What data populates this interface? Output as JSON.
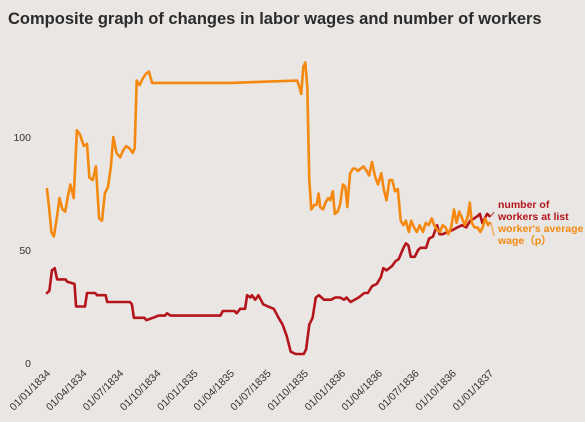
{
  "chart_data": {
    "type": "line",
    "title": "Composite graph of changes in labor wages and number of workers",
    "xlabel": "",
    "ylabel": "",
    "x_range": [
      "1834-01-01",
      "1837-01-01"
    ],
    "ylim": [
      0,
      135
    ],
    "y_ticks": [
      0,
      50,
      100
    ],
    "x_ticks": [
      {
        "date": "1834-01-01",
        "label": "01/01/1834"
      },
      {
        "date": "1834-04-01",
        "label": "01/04/1834"
      },
      {
        "date": "1834-07-01",
        "label": "01/07/1834"
      },
      {
        "date": "1834-10-01",
        "label": "01/10/1834"
      },
      {
        "date": "1835-01-01",
        "label": "01/01/1835"
      },
      {
        "date": "1835-04-01",
        "label": "01/04/1835"
      },
      {
        "date": "1835-07-01",
        "label": "01/07/1835"
      },
      {
        "date": "1835-10-01",
        "label": "01/10/1835"
      },
      {
        "date": "1836-01-01",
        "label": "01/01/1836"
      },
      {
        "date": "1836-04-01",
        "label": "01/04/1836"
      },
      {
        "date": "1836-07-01",
        "label": "01/07/1836"
      },
      {
        "date": "1836-10-01",
        "label": "01/10/1836"
      },
      {
        "date": "1837-01-01",
        "label": "01/01/1837"
      }
    ],
    "grid": false,
    "legend": "right",
    "series": [
      {
        "name": "number of workers at list",
        "label_lines": [
          "number of",
          "workers at list"
        ],
        "color": "#b5141b",
        "points": [
          [
            "1834-01-01",
            31
          ],
          [
            "1834-01-07",
            32
          ],
          [
            "1834-01-13",
            41
          ],
          [
            "1834-01-20",
            42
          ],
          [
            "1834-01-26",
            37
          ],
          [
            "1834-02-16",
            37
          ],
          [
            "1834-02-20",
            36
          ],
          [
            "1834-03-10",
            35
          ],
          [
            "1834-03-14",
            25
          ],
          [
            "1834-04-05",
            25
          ],
          [
            "1834-04-10",
            31
          ],
          [
            "1834-04-30",
            31
          ],
          [
            "1834-05-05",
            30
          ],
          [
            "1834-05-26",
            30
          ],
          [
            "1834-05-30",
            27
          ],
          [
            "1834-07-25",
            27
          ],
          [
            "1834-07-30",
            26
          ],
          [
            "1834-08-04",
            20
          ],
          [
            "1834-08-30",
            20
          ],
          [
            "1834-09-04",
            19
          ],
          [
            "1834-09-20",
            20
          ],
          [
            "1834-10-04",
            21
          ],
          [
            "1834-10-20",
            21
          ],
          [
            "1834-10-25",
            22
          ],
          [
            "1834-11-03",
            21
          ],
          [
            "1835-01-01",
            21
          ],
          [
            "1835-03-06",
            21
          ],
          [
            "1835-03-12",
            23
          ],
          [
            "1835-04-10",
            23
          ],
          [
            "1835-04-15",
            22
          ],
          [
            "1835-04-24",
            24
          ],
          [
            "1835-05-06",
            24
          ],
          [
            "1835-05-11",
            30
          ],
          [
            "1835-05-19",
            29
          ],
          [
            "1835-05-23",
            30
          ],
          [
            "1835-05-31",
            28
          ],
          [
            "1835-06-08",
            30
          ],
          [
            "1835-06-20",
            26
          ],
          [
            "1835-07-02",
            25
          ],
          [
            "1835-07-16",
            24
          ],
          [
            "1835-07-28",
            20
          ],
          [
            "1835-08-07",
            17
          ],
          [
            "1835-08-17",
            12
          ],
          [
            "1835-08-27",
            5
          ],
          [
            "1835-09-08",
            4
          ],
          [
            "1835-09-28",
            4
          ],
          [
            "1835-10-04",
            6
          ],
          [
            "1835-10-12",
            17
          ],
          [
            "1835-10-20",
            20
          ],
          [
            "1835-10-28",
            29
          ],
          [
            "1835-11-05",
            30
          ],
          [
            "1835-11-17",
            28
          ],
          [
            "1835-12-05",
            28
          ],
          [
            "1835-12-15",
            29
          ],
          [
            "1835-12-27",
            29
          ],
          [
            "1836-01-06",
            28
          ],
          [
            "1836-01-12",
            29
          ],
          [
            "1836-01-22",
            27
          ],
          [
            "1836-02-01",
            28
          ],
          [
            "1836-02-11",
            29
          ],
          [
            "1836-02-25",
            31
          ],
          [
            "1836-03-05",
            31
          ],
          [
            "1836-03-15",
            34
          ],
          [
            "1836-03-27",
            35
          ],
          [
            "1836-04-06",
            38
          ],
          [
            "1836-04-12",
            42
          ],
          [
            "1836-04-20",
            41
          ],
          [
            "1836-05-04",
            43
          ],
          [
            "1836-05-12",
            45
          ],
          [
            "1836-05-20",
            46
          ],
          [
            "1836-06-01",
            51
          ],
          [
            "1836-06-07",
            53
          ],
          [
            "1836-06-13",
            52
          ],
          [
            "1836-06-19",
            47
          ],
          [
            "1836-06-29",
            47
          ],
          [
            "1836-07-07",
            50
          ],
          [
            "1836-07-13",
            51
          ],
          [
            "1836-07-27",
            51
          ],
          [
            "1836-08-03",
            55
          ],
          [
            "1836-08-13",
            56
          ],
          [
            "1836-08-23",
            61
          ],
          [
            "1836-08-29",
            57
          ],
          [
            "1836-09-06",
            57
          ],
          [
            "1836-09-18",
            58
          ],
          [
            "1836-10-02",
            59
          ],
          [
            "1836-10-12",
            60
          ],
          [
            "1836-10-24",
            61
          ],
          [
            "1836-11-03",
            60
          ],
          [
            "1836-11-13",
            63
          ],
          [
            "1836-11-23",
            64
          ],
          [
            "1836-12-01",
            65
          ],
          [
            "1836-12-07",
            66
          ],
          [
            "1836-12-13",
            62
          ],
          [
            "1836-12-19",
            64
          ],
          [
            "1836-12-25",
            66
          ],
          [
            "1836-12-31",
            65
          ]
        ]
      },
      {
        "name": "worker's average wage（p）",
        "label_lines": [
          "worker's average",
          "wage（p）"
        ],
        "color": "#f5890f",
        "points": [
          [
            "1834-01-01",
            77
          ],
          [
            "1834-01-06",
            69
          ],
          [
            "1834-01-12",
            58
          ],
          [
            "1834-01-18",
            56
          ],
          [
            "1834-01-26",
            65
          ],
          [
            "1834-02-01",
            73
          ],
          [
            "1834-02-08",
            68
          ],
          [
            "1834-02-15",
            67
          ],
          [
            "1834-02-22",
            74
          ],
          [
            "1834-02-28",
            79
          ],
          [
            "1834-03-08",
            73
          ],
          [
            "1834-03-16",
            103
          ],
          [
            "1834-03-24",
            101
          ],
          [
            "1834-04-02",
            96
          ],
          [
            "1834-04-10",
            97
          ],
          [
            "1834-04-16",
            82
          ],
          [
            "1834-04-24",
            81
          ],
          [
            "1834-05-02",
            87
          ],
          [
            "1834-05-10",
            64
          ],
          [
            "1834-05-17",
            63
          ],
          [
            "1834-05-24",
            75
          ],
          [
            "1834-06-01",
            78
          ],
          [
            "1834-06-08",
            87
          ],
          [
            "1834-06-14",
            100
          ],
          [
            "1834-06-22",
            93
          ],
          [
            "1834-07-01",
            91
          ],
          [
            "1834-07-08",
            94
          ],
          [
            "1834-07-16",
            96
          ],
          [
            "1834-07-24",
            95
          ],
          [
            "1834-08-01",
            93
          ],
          [
            "1834-08-06",
            95
          ],
          [
            "1834-08-11",
            125
          ],
          [
            "1834-08-18",
            123
          ],
          [
            "1834-08-26",
            126
          ],
          [
            "1834-09-03",
            128
          ],
          [
            "1834-09-10",
            129
          ],
          [
            "1834-09-18",
            124
          ],
          [
            "1834-10-01",
            124
          ],
          [
            "1835-04-01",
            124
          ],
          [
            "1835-09-12",
            125
          ],
          [
            "1835-09-18",
            122
          ],
          [
            "1835-09-22",
            119
          ],
          [
            "1835-09-27",
            131
          ],
          [
            "1835-10-02",
            133
          ],
          [
            "1835-10-07",
            122
          ],
          [
            "1835-10-12",
            81
          ],
          [
            "1835-10-17",
            68
          ],
          [
            "1835-10-24",
            70
          ],
          [
            "1835-10-30",
            70
          ],
          [
            "1835-11-04",
            75
          ],
          [
            "1835-11-08",
            69
          ],
          [
            "1835-11-15",
            68
          ],
          [
            "1835-11-21",
            71
          ],
          [
            "1835-11-28",
            73
          ],
          [
            "1835-12-03",
            72
          ],
          [
            "1835-12-09",
            76
          ],
          [
            "1835-12-14",
            66
          ],
          [
            "1835-12-21",
            67
          ],
          [
            "1835-12-27",
            70
          ],
          [
            "1836-01-03",
            79
          ],
          [
            "1836-01-09",
            78
          ],
          [
            "1836-01-14",
            69
          ],
          [
            "1836-01-21",
            84
          ],
          [
            "1836-01-28",
            86
          ],
          [
            "1836-02-04",
            86
          ],
          [
            "1836-02-09",
            85
          ],
          [
            "1836-02-16",
            86
          ],
          [
            "1836-02-23",
            87
          ],
          [
            "1836-03-02",
            85
          ],
          [
            "1836-03-08",
            83
          ],
          [
            "1836-03-15",
            89
          ],
          [
            "1836-03-22",
            83
          ],
          [
            "1836-03-30",
            79
          ],
          [
            "1836-04-07",
            84
          ],
          [
            "1836-04-13",
            77
          ],
          [
            "1836-04-20",
            72
          ],
          [
            "1836-04-27",
            81
          ],
          [
            "1836-05-04",
            81
          ],
          [
            "1836-05-11",
            76
          ],
          [
            "1836-05-18",
            77
          ],
          [
            "1836-05-25",
            63
          ],
          [
            "1836-06-01",
            61
          ],
          [
            "1836-06-07",
            63
          ],
          [
            "1836-06-14",
            58
          ],
          [
            "1836-06-20",
            63
          ],
          [
            "1836-06-27",
            60
          ],
          [
            "1836-07-04",
            58
          ],
          [
            "1836-07-11",
            61
          ],
          [
            "1836-07-19",
            58
          ],
          [
            "1836-07-26",
            62
          ],
          [
            "1836-08-02",
            61
          ],
          [
            "1836-08-10",
            64
          ],
          [
            "1836-08-16",
            61
          ],
          [
            "1836-08-23",
            59
          ],
          [
            "1836-08-30",
            58
          ],
          [
            "1836-09-06",
            61
          ],
          [
            "1836-09-13",
            60
          ],
          [
            "1836-09-20",
            57
          ],
          [
            "1836-09-27",
            60
          ],
          [
            "1836-10-04",
            68
          ],
          [
            "1836-10-10",
            62
          ],
          [
            "1836-10-17",
            67
          ],
          [
            "1836-10-24",
            64
          ],
          [
            "1836-10-31",
            61
          ],
          [
            "1836-11-07",
            65
          ],
          [
            "1836-11-12",
            71
          ],
          [
            "1836-11-17",
            62
          ],
          [
            "1836-11-24",
            60
          ],
          [
            "1836-12-01",
            60
          ],
          [
            "1836-12-08",
            58
          ],
          [
            "1836-12-14",
            60
          ],
          [
            "1836-12-20",
            64
          ],
          [
            "1836-12-27",
            61
          ],
          [
            "1836-12-31",
            62
          ]
        ]
      }
    ]
  }
}
